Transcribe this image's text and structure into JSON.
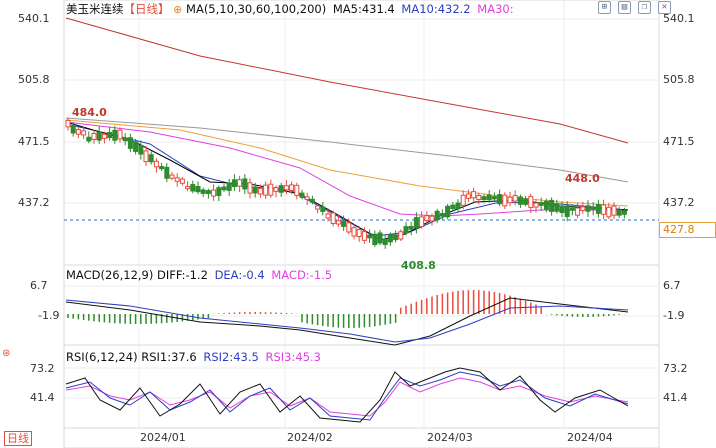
{
  "header": {
    "symbol": "美玉米连续",
    "period": "【日线】",
    "ma_spec": "MA(5,10,30,60,100,200)",
    "ma5": "MA5:431.4",
    "ma10": "MA10:432.2",
    "ma30": "MA30:",
    "toolbar_icons": [
      "grid-icon",
      "layout-icon",
      "window-icon",
      "close-icon"
    ]
  },
  "price_axis": {
    "labels": [
      "540.1",
      "505.8",
      "471.5",
      "437.2"
    ],
    "current_price": "427.8"
  },
  "annotations": {
    "high_left": "484.0",
    "high_right": "448.0",
    "low": "408.8"
  },
  "macd": {
    "title": "MACD(26,12,9)",
    "diff": "DIFF:-1.2",
    "dea": "DEA:-0.4",
    "macd": "MACD:-1.5",
    "labels": [
      "6.7",
      "-1.9"
    ]
  },
  "rsi": {
    "title": "RSI(6,12,24)",
    "rsi1": "RSI1:37.6",
    "rsi2": "RSI2:43.5",
    "rsi3": "RSI3:45.3",
    "labels": [
      "73.2",
      "41.4"
    ]
  },
  "time_axis": {
    "period_tab": "日线",
    "labels": [
      "2024/01",
      "2024/02",
      "2024/03",
      "2024/04"
    ]
  },
  "colors": {
    "up": "#e74c3c",
    "down": "#2e8b2e",
    "ma5": "#000000",
    "ma10": "#2b3fc4",
    "ma30": "#e040e0",
    "ma60": "#e8a23a",
    "ma100": "#999999",
    "ma200": "#c0392b",
    "dashed": "#1f6fd0"
  }
}
